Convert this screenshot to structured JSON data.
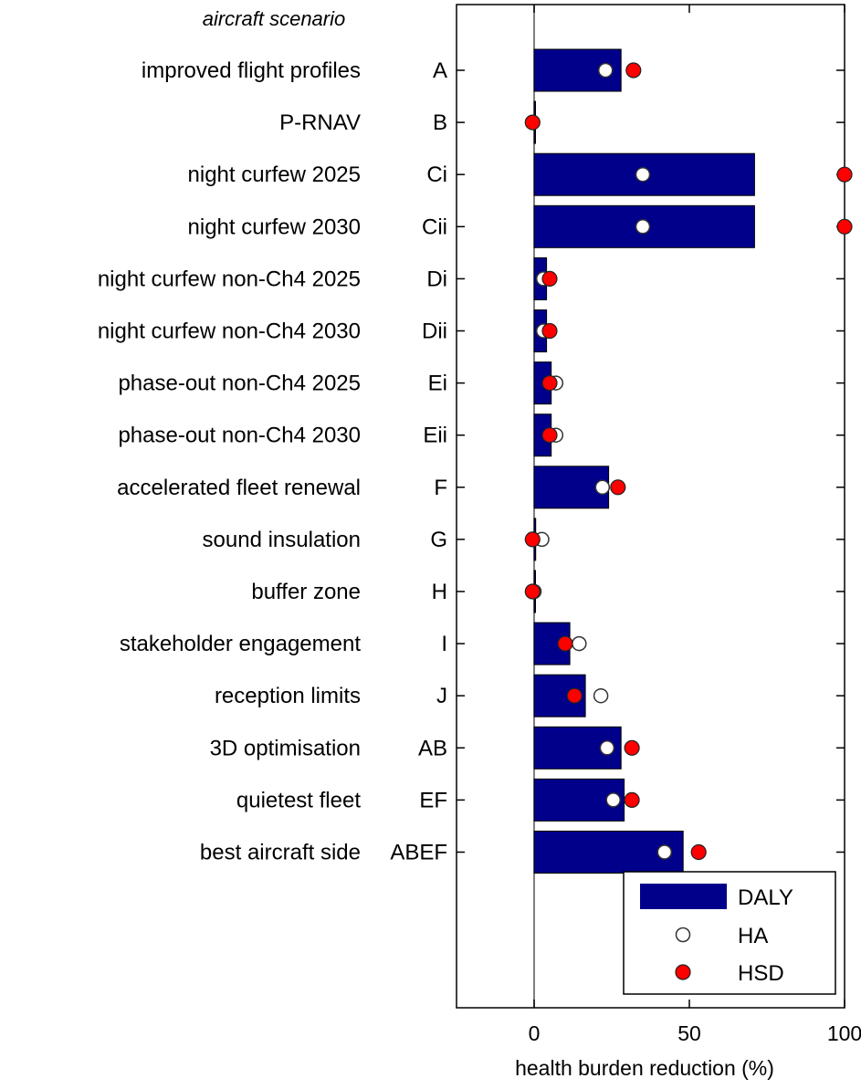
{
  "chart_data": {
    "type": "bar",
    "orientation": "horizontal",
    "header": "aircraft scenario",
    "xlabel": "health burden reduction (%)",
    "xlim": [
      -25,
      100
    ],
    "xticks": [
      0,
      50,
      100
    ],
    "xtick_labels": [
      "0",
      "50",
      "100"
    ],
    "grid": false,
    "legend_position": "bottom-right",
    "categories": [
      {
        "name": "improved flight profiles",
        "code": "A"
      },
      {
        "name": "P-RNAV",
        "code": "B"
      },
      {
        "name": "night curfew 2025",
        "code": "Ci"
      },
      {
        "name": "night curfew 2030",
        "code": "Cii"
      },
      {
        "name": "night curfew non-Ch4 2025",
        "code": "Di"
      },
      {
        "name": "night curfew non-Ch4 2030",
        "code": "Dii"
      },
      {
        "name": "phase-out non-Ch4 2025",
        "code": "Ei"
      },
      {
        "name": "phase-out non-Ch4 2030",
        "code": "Eii"
      },
      {
        "name": "accelerated fleet renewal",
        "code": "F"
      },
      {
        "name": "sound insulation",
        "code": "G"
      },
      {
        "name": "buffer zone",
        "code": "H"
      },
      {
        "name": "stakeholder engagement",
        "code": "I"
      },
      {
        "name": "reception limits",
        "code": "J"
      },
      {
        "name": "3D optimisation",
        "code": "AB"
      },
      {
        "name": "quietest fleet",
        "code": "EF"
      },
      {
        "name": "best aircraft side",
        "code": "ABEF"
      }
    ],
    "series": [
      {
        "name": "DALY",
        "kind": "bar",
        "color": "#00008b",
        "values": [
          28,
          0,
          71,
          71,
          4,
          4,
          5.5,
          5.5,
          24,
          0.5,
          0.3,
          11.5,
          16.5,
          28,
          29,
          48
        ]
      },
      {
        "name": "HA",
        "kind": "marker",
        "color": "#ffffff",
        "values": [
          23,
          -0.5,
          35,
          35,
          3,
          3,
          7,
          7,
          22,
          2.5,
          0,
          14.5,
          21.5,
          23.5,
          25.5,
          42
        ]
      },
      {
        "name": "HSD",
        "kind": "marker",
        "color": "#ff0000",
        "values": [
          32,
          -0.5,
          100,
          100,
          5,
          5,
          5,
          5,
          27,
          -0.5,
          -0.5,
          10,
          13,
          31.5,
          31.5,
          53
        ]
      }
    ]
  }
}
